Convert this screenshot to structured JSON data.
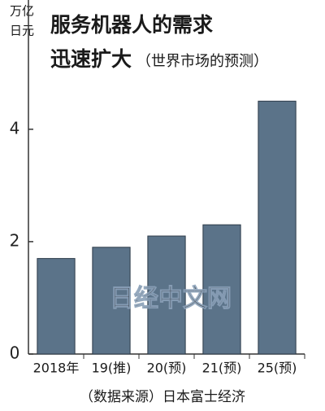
{
  "chart_data": {
    "type": "bar",
    "y_label": [
      "万亿",
      "日元"
    ],
    "title": [
      "服务机器人的需求",
      "迅速扩大"
    ],
    "subtitle": "（世界市场的预测）",
    "categories": [
      "2018年",
      "19(推)",
      "20(预)",
      "21(预)",
      "25(预)"
    ],
    "values": [
      1.7,
      1.9,
      2.1,
      2.3,
      4.5
    ],
    "color": "#5b7389",
    "ylim": [
      0,
      6.3
    ],
    "yticks": [
      0,
      2,
      4
    ],
    "source": "（数据来源）日本富士经济",
    "watermark": "日经中文网"
  }
}
